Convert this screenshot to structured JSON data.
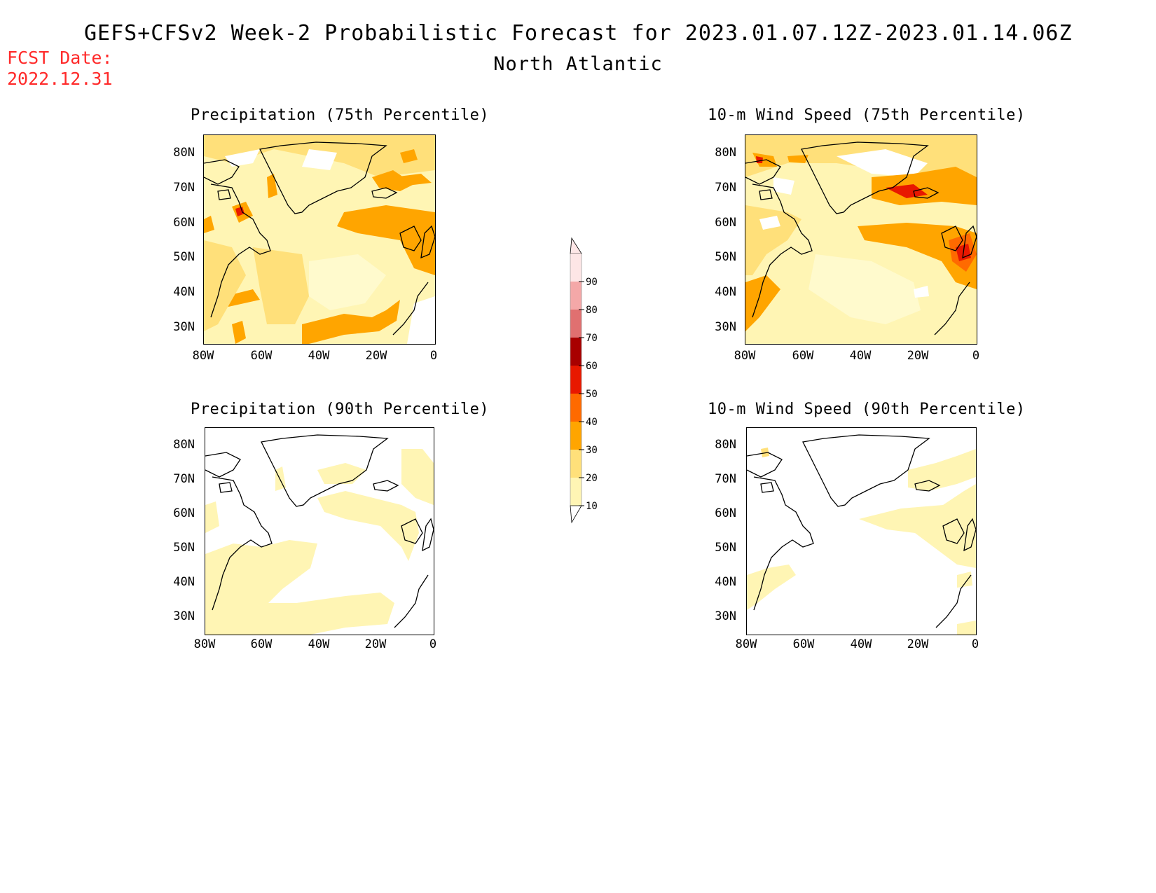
{
  "header": {
    "title": "GEFS+CFSv2 Week-2 Probabilistic Forecast for 2023.01.07.12Z-2023.01.14.06Z",
    "region": "North Atlantic",
    "fcst_label": "FCST Date:",
    "fcst_date": "2022.12.31"
  },
  "axes": {
    "lat_labels": [
      "80N",
      "70N",
      "60N",
      "50N",
      "40N",
      "30N"
    ],
    "lon_labels": [
      "80W",
      "60W",
      "40W",
      "20W",
      "0"
    ]
  },
  "panels": [
    {
      "title": "Precipitation (75th Percentile)",
      "variable": "precipitation",
      "percentile": 75
    },
    {
      "title": "10-m Wind Speed (75th Percentile)",
      "variable": "wind speed",
      "percentile": 75
    },
    {
      "title": "Precipitation (90th Percentile)",
      "variable": "precipitation",
      "percentile": 90
    },
    {
      "title": "10-m Wind Speed (90th Percentile)",
      "variable": "wind speed",
      "percentile": 90
    }
  ],
  "colorbar": {
    "levels": [
      "10",
      "20",
      "30",
      "40",
      "50",
      "60",
      "70",
      "80",
      "90"
    ],
    "colors": [
      "#fff5b4",
      "#ffe07a",
      "#ffa500",
      "#ff6a00",
      "#e81800",
      "#a80000",
      "#e07070",
      "#f4a8a8",
      "#fde6e6"
    ]
  }
}
